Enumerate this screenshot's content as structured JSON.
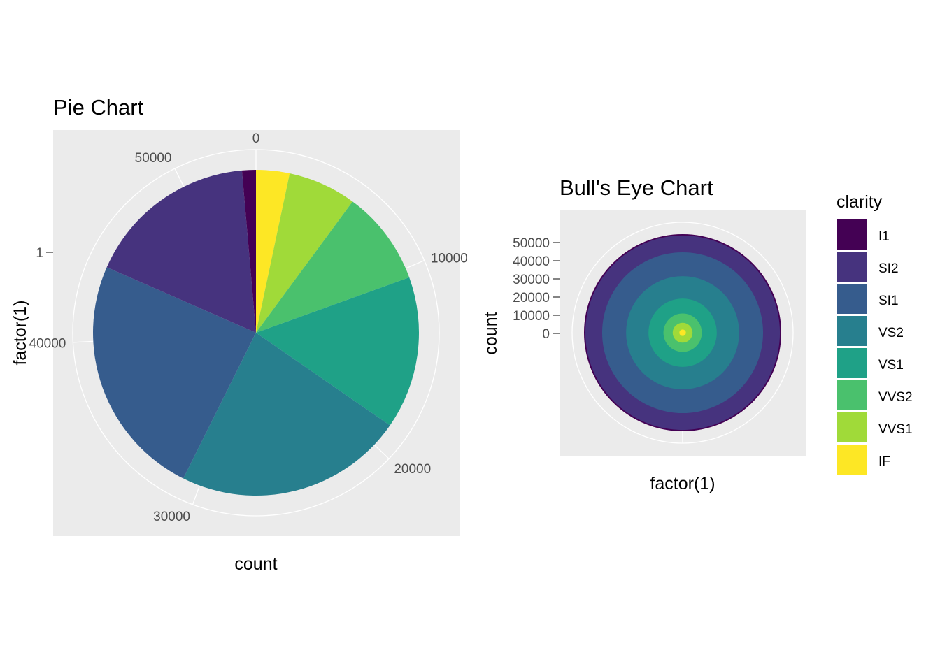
{
  "colors": {
    "I1": "#440154",
    "SI2": "#46337E",
    "SI1": "#365C8D",
    "VS2": "#277F8E",
    "VS1": "#1FA187",
    "VVS2": "#4AC16D",
    "VVS1": "#A0DA39",
    "IF": "#FDE725",
    "panel": "#EBEBEB",
    "grid": "#FFFFFF"
  },
  "chart_data": [
    {
      "type": "pie",
      "title": "Pie Chart",
      "xlabel": "count",
      "ylabel": "factor(1)",
      "y_tick_labels": [
        "1"
      ],
      "radial_ticks": [
        0,
        10000,
        20000,
        30000,
        40000,
        50000
      ],
      "radial_tick_labels": [
        "0",
        "10000",
        "20000",
        "30000",
        "40000",
        "50000"
      ],
      "total": 53940,
      "stack_order_from_zero": [
        "IF",
        "VVS1",
        "VVS2",
        "VS1",
        "VS2",
        "SI1",
        "SI2",
        "I1"
      ],
      "categories": [
        "I1",
        "SI2",
        "SI1",
        "VS2",
        "VS1",
        "VVS2",
        "VVS1",
        "IF"
      ],
      "values": [
        741,
        9194,
        13065,
        12258,
        8171,
        5066,
        3655,
        1790
      ]
    },
    {
      "type": "bar",
      "subtype": "bullseye",
      "title": "Bull's Eye Chart",
      "xlabel": "factor(1)",
      "ylabel": "count",
      "y_tick_labels": [
        "50000",
        "40000",
        "30000",
        "20000",
        "10000",
        "0"
      ],
      "ylim": [
        0,
        53940
      ],
      "categories": [
        "I1",
        "SI2",
        "SI1",
        "VS2",
        "VS1",
        "VVS2",
        "VVS1",
        "IF"
      ],
      "values": [
        741,
        9194,
        13065,
        12258,
        8171,
        5066,
        3655,
        1790
      ]
    }
  ],
  "legend": {
    "title": "clarity",
    "items": [
      "I1",
      "SI2",
      "SI1",
      "VS2",
      "VS1",
      "VVS2",
      "VVS1",
      "IF"
    ]
  }
}
